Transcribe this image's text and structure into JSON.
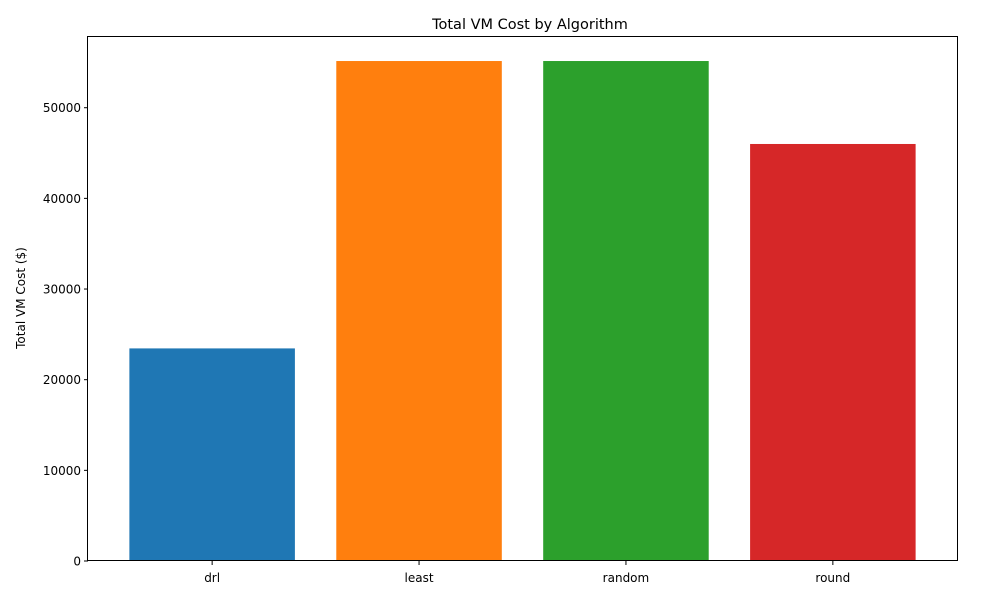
{
  "chart_data": {
    "type": "bar",
    "title": "Total VM Cost by Algorithm",
    "xlabel": "",
    "ylabel": "Total VM Cost ($)",
    "categories": [
      "drl",
      "least",
      "random",
      "round"
    ],
    "values": [
      23450,
      55150,
      55150,
      46000
    ],
    "colors": [
      "#1f77b4",
      "#ff7f0e",
      "#2ca02c",
      "#d62728"
    ],
    "ylim": [
      0,
      57800
    ],
    "yticks": [
      0,
      10000,
      20000,
      30000,
      40000,
      50000
    ],
    "grid": false,
    "legend": "none"
  }
}
